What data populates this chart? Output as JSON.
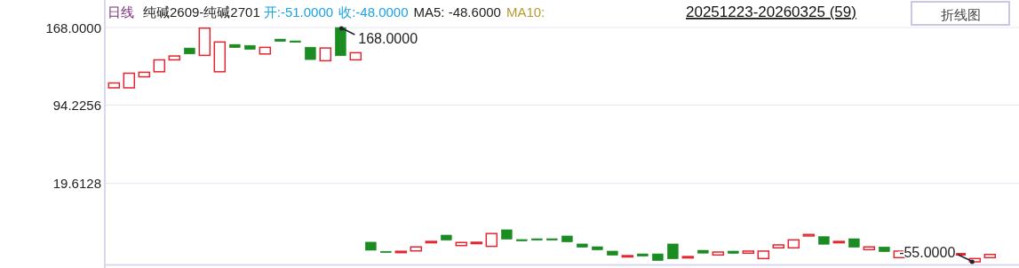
{
  "chart_data": {
    "type": "candlestick",
    "title": "日线",
    "subtitle": "纯碱2609-纯碱2701",
    "annotations": [
      "开:-51.0000",
      "收:-48.0000",
      "MA5: -48.6000",
      "MA10:",
      "20251223-20260325 (59)",
      "折线图",
      "168.0000",
      "-55.0000"
    ],
    "categories": [
      null,
      null,
      null,
      null,
      null,
      null,
      null,
      null,
      null,
      null,
      null,
      null,
      null,
      null,
      null,
      null,
      null,
      null,
      null,
      null,
      null,
      null,
      null,
      null,
      null,
      null,
      null,
      null,
      null,
      null,
      null,
      null,
      null,
      null,
      null,
      null,
      null,
      null,
      null,
      null,
      null,
      null,
      null,
      null,
      null,
      null,
      null,
      null,
      null,
      null,
      null,
      null,
      null,
      null,
      null,
      null,
      null,
      null,
      null
    ],
    "ohlc": [
      [
        110.6,
        115.2,
        110.6,
        115.2
      ],
      [
        110.6,
        124.5,
        110.6,
        124.5
      ],
      [
        121.1,
        125.4,
        121.1,
        125.4
      ],
      [
        125.9,
        137.2,
        125.9,
        137.2
      ],
      [
        137.2,
        140.9,
        137.2,
        140.9
      ],
      [
        148.5,
        148.5,
        142.8,
        142.8
      ],
      [
        141.5,
        167.4,
        141.5,
        167.4
      ],
      [
        125.9,
        154.2,
        125.9,
        154.2
      ],
      [
        151.9,
        151.9,
        148.8,
        148.8
      ],
      [
        151.0,
        151.0,
        147.1,
        147.1
      ],
      [
        142.8,
        149.1,
        142.8,
        149.1
      ],
      [
        157.0,
        157.0,
        154.7,
        154.7
      ],
      [
        155.3,
        155.3,
        153.8,
        153.8
      ],
      [
        149.3,
        149.3,
        137.5,
        137.5
      ],
      [
        136.4,
        148.5,
        136.4,
        148.5
      ],
      [
        168.0,
        168.0,
        141.1,
        141.1
      ],
      [
        137.2,
        144.0,
        137.2,
        144.0
      ],
      [
        -36.3,
        -36.3,
        -44.0,
        -44.0
      ],
      [
        -45.0,
        -45.0,
        -45.4,
        -45.4
      ],
      [
        -45.4,
        -45.0,
        -45.4,
        -45.0
      ],
      [
        -44.6,
        -40.8,
        -44.6,
        -40.8
      ],
      [
        -36.0,
        -35.6,
        -36.0,
        -35.6
      ],
      [
        -29.6,
        -29.6,
        -34.4,
        -34.4
      ],
      [
        -39.5,
        -36.6,
        -39.5,
        -36.6
      ],
      [
        -36.8,
        -36.4,
        -36.8,
        -36.4
      ],
      [
        -40.3,
        -28.1,
        -40.3,
        -28.1
      ],
      [
        -24.5,
        -24.5,
        -33.5,
        -33.5
      ],
      [
        -33.8,
        -33.8,
        -35.2,
        -35.2
      ],
      [
        -33.0,
        -33.0,
        -34.4,
        -34.4
      ],
      [
        -33.0,
        -33.0,
        -34.4,
        -34.4
      ],
      [
        -30.4,
        -30.4,
        -36.1,
        -36.1
      ],
      [
        -38.0,
        -38.0,
        -41.2,
        -41.2
      ],
      [
        -40.6,
        -40.6,
        -43.7,
        -43.7
      ],
      [
        -44.8,
        -44.8,
        -48.8,
        -48.8
      ],
      [
        -49.5,
        -49.1,
        -49.5,
        -49.1
      ],
      [
        -47.4,
        -47.4,
        -49.7,
        -49.7
      ],
      [
        -47.4,
        -47.4,
        -53.9,
        -53.9
      ],
      [
        -38.0,
        -38.0,
        -52.2,
        -52.2
      ],
      [
        -50.4,
        -50.0,
        -50.4,
        -50.0
      ],
      [
        -44.0,
        -44.0,
        -46.8,
        -46.8
      ],
      [
        -48.5,
        -45.7,
        -48.5,
        -45.7
      ],
      [
        -44.8,
        -44.8,
        -47.1,
        -47.1
      ],
      [
        -46.8,
        -44.8,
        -46.8,
        -44.8
      ],
      [
        -51.9,
        -44.8,
        -51.9,
        -44.8
      ],
      [
        -41.7,
        -38.9,
        -41.7,
        -38.9
      ],
      [
        -41.7,
        -34.1,
        -41.7,
        -34.1
      ],
      [
        -30.4,
        -29.0,
        -30.4,
        -29.0
      ],
      [
        -31.0,
        -31.0,
        -38.3,
        -38.3
      ],
      [
        -36.0,
        -35.6,
        -36.0,
        -35.6
      ],
      [
        -33.0,
        -33.0,
        -41.2,
        -41.2
      ],
      [
        -43.4,
        -40.8,
        -43.4,
        -40.8
      ],
      [
        -40.8,
        -40.8,
        -45.4,
        -45.4
      ],
      [
        -51.0,
        -44.8,
        -51.0,
        -44.8
      ],
      null,
      null,
      null,
      [
        -47.6,
        -47.2,
        -47.6,
        -47.2
      ],
      [
        -55.0,
        -51.9,
        -55.0,
        -51.9
      ],
      [
        -51.0,
        -48.0,
        -51.0,
        -48.0
      ]
    ],
    "ylim": [
      -57,
      168
    ],
    "yticks": [
      {
        "value": 168,
        "label": "168.0000"
      },
      94.2256,
      19.6128
    ],
    "grid": "y"
  }
}
